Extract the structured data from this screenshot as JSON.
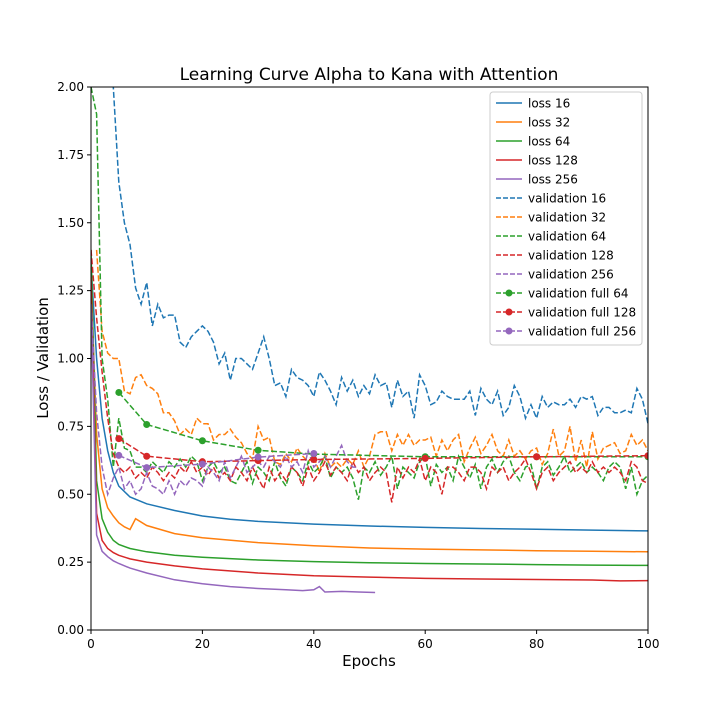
{
  "chart_data": {
    "type": "line",
    "title": "Learning Curve Alpha to Kana with Attention",
    "xlabel": "Epochs",
    "ylabel": "Loss / Validation",
    "xlim": [
      0,
      100
    ],
    "ylim": [
      0,
      2.0
    ],
    "xticks": [
      "0",
      "20",
      "40",
      "60",
      "80",
      "100"
    ],
    "yticks": [
      "0.00",
      "0.25",
      "0.50",
      "0.75",
      "1.00",
      "1.25",
      "1.50",
      "1.75",
      "2.00"
    ],
    "grid": false,
    "legend_position": "top-right",
    "series": [
      {
        "name": "loss 16",
        "color": "#1f77b4",
        "style": "solid",
        "x": [
          0,
          1,
          2,
          3,
          4,
          5,
          7,
          10,
          15,
          20,
          25,
          30,
          40,
          50,
          60,
          70,
          80,
          90,
          100
        ],
        "y": [
          1.35,
          1.0,
          0.78,
          0.66,
          0.58,
          0.53,
          0.49,
          0.465,
          0.44,
          0.42,
          0.408,
          0.4,
          0.39,
          0.383,
          0.378,
          0.374,
          0.371,
          0.368,
          0.365
        ]
      },
      {
        "name": "loss 32",
        "color": "#ff7f0e",
        "style": "solid",
        "x": [
          0,
          1,
          2,
          3,
          4,
          5,
          6,
          7,
          8,
          10,
          15,
          20,
          30,
          40,
          50,
          60,
          70,
          80,
          90,
          100
        ],
        "y": [
          1.3,
          0.72,
          0.52,
          0.45,
          0.42,
          0.395,
          0.38,
          0.37,
          0.41,
          0.385,
          0.355,
          0.34,
          0.322,
          0.31,
          0.302,
          0.298,
          0.295,
          0.292,
          0.29,
          0.288
        ]
      },
      {
        "name": "loss 64",
        "color": "#2ca02c",
        "style": "solid",
        "x": [
          0,
          1,
          2,
          3,
          4,
          5,
          7,
          10,
          15,
          20,
          30,
          40,
          50,
          60,
          70,
          80,
          90,
          100
        ],
        "y": [
          1.4,
          0.55,
          0.41,
          0.36,
          0.33,
          0.315,
          0.3,
          0.288,
          0.275,
          0.268,
          0.258,
          0.252,
          0.248,
          0.245,
          0.243,
          0.241,
          0.239,
          0.238
        ]
      },
      {
        "name": "loss 128",
        "color": "#d62728",
        "style": "solid",
        "x": [
          0,
          1,
          2,
          3,
          4,
          5,
          7,
          10,
          15,
          20,
          30,
          40,
          50,
          60,
          70,
          80,
          90,
          95,
          100
        ],
        "y": [
          1.3,
          0.43,
          0.33,
          0.3,
          0.285,
          0.275,
          0.262,
          0.25,
          0.236,
          0.225,
          0.21,
          0.2,
          0.195,
          0.19,
          0.188,
          0.186,
          0.184,
          0.181,
          0.182
        ]
      },
      {
        "name": "loss 256",
        "color": "#9467bd",
        "style": "solid",
        "x": [
          0,
          1,
          2,
          3,
          4,
          5,
          7,
          10,
          15,
          20,
          25,
          30,
          35,
          38,
          40,
          41,
          42,
          45,
          48,
          51
        ],
        "y": [
          1.2,
          0.35,
          0.29,
          0.27,
          0.255,
          0.245,
          0.228,
          0.21,
          0.185,
          0.17,
          0.16,
          0.153,
          0.148,
          0.145,
          0.148,
          0.16,
          0.14,
          0.142,
          0.14,
          0.138
        ]
      },
      {
        "name": "validation 16",
        "color": "#1f77b4",
        "style": "dashed",
        "x": [
          3,
          4,
          5,
          6,
          7,
          8,
          9,
          10,
          11,
          12,
          13,
          14,
          15,
          16,
          17,
          18,
          19,
          20,
          21,
          22,
          23,
          24,
          25,
          26,
          27,
          28,
          29,
          30,
          31,
          32,
          33,
          34,
          35,
          36,
          37,
          38,
          39,
          40,
          41,
          42,
          43,
          44,
          45,
          46,
          47,
          48,
          49,
          50,
          51,
          52,
          53,
          54,
          55,
          56,
          57,
          58,
          59,
          60,
          61,
          62,
          63,
          64,
          65,
          66,
          67,
          68,
          69,
          70,
          71,
          72,
          73,
          74,
          75,
          76,
          77,
          78,
          79,
          80,
          81,
          82,
          83,
          84,
          85,
          86,
          87,
          88,
          89,
          90,
          91,
          92,
          93,
          94,
          95,
          96,
          97,
          98,
          99,
          100
        ],
        "y": [
          2.2,
          2.0,
          1.65,
          1.5,
          1.42,
          1.26,
          1.2,
          1.28,
          1.12,
          1.2,
          1.15,
          1.16,
          1.16,
          1.06,
          1.04,
          1.08,
          1.1,
          1.12,
          1.1,
          1.06,
          0.98,
          1.02,
          0.92,
          1.0,
          1.0,
          0.98,
          0.96,
          1.02,
          1.08,
          1.0,
          0.9,
          0.91,
          0.86,
          0.96,
          0.93,
          0.92,
          0.9,
          0.86,
          0.95,
          0.92,
          0.88,
          0.83,
          0.93,
          0.88,
          0.92,
          0.86,
          0.9,
          0.87,
          0.94,
          0.9,
          0.91,
          0.82,
          0.92,
          0.86,
          0.88,
          0.78,
          0.94,
          0.9,
          0.83,
          0.84,
          0.88,
          0.86,
          0.85,
          0.85,
          0.85,
          0.88,
          0.79,
          0.89,
          0.85,
          0.83,
          0.88,
          0.79,
          0.82,
          0.9,
          0.86,
          0.78,
          0.83,
          0.78,
          0.86,
          0.82,
          0.84,
          0.83,
          0.83,
          0.85,
          0.82,
          0.86,
          0.85,
          0.86,
          0.79,
          0.82,
          0.82,
          0.8,
          0.8,
          0.81,
          0.8,
          0.89,
          0.85,
          0.76
        ]
      },
      {
        "name": "validation 32",
        "color": "#ff7f0e",
        "style": "dashed",
        "x": [
          1,
          2,
          3,
          4,
          5,
          6,
          7,
          8,
          9,
          10,
          11,
          12,
          13,
          14,
          15,
          16,
          17,
          18,
          19,
          20,
          21,
          22,
          23,
          24,
          25,
          26,
          27,
          28,
          29,
          30,
          31,
          32,
          33,
          34,
          35,
          36,
          37,
          38,
          39,
          40,
          41,
          42,
          43,
          44,
          45,
          46,
          47,
          48,
          49,
          50,
          51,
          52,
          53,
          54,
          55,
          56,
          57,
          58,
          59,
          60,
          61,
          62,
          63,
          64,
          65,
          66,
          67,
          68,
          69,
          70,
          71,
          72,
          73,
          74,
          75,
          76,
          77,
          78,
          79,
          80,
          81,
          82,
          83,
          84,
          85,
          86,
          87,
          88,
          89,
          90,
          91,
          92,
          93,
          94,
          95,
          96,
          97,
          98,
          99,
          100
        ],
        "y": [
          1.4,
          1.1,
          1.02,
          1.0,
          1.0,
          0.88,
          0.87,
          0.93,
          0.94,
          0.9,
          0.89,
          0.87,
          0.8,
          0.8,
          0.77,
          0.72,
          0.74,
          0.72,
          0.78,
          0.76,
          0.76,
          0.7,
          0.72,
          0.72,
          0.74,
          0.71,
          0.69,
          0.65,
          0.63,
          0.75,
          0.7,
          0.71,
          0.62,
          0.61,
          0.65,
          0.62,
          0.67,
          0.64,
          0.62,
          0.64,
          0.58,
          0.65,
          0.6,
          0.62,
          0.6,
          0.63,
          0.61,
          0.66,
          0.6,
          0.64,
          0.72,
          0.73,
          0.73,
          0.66,
          0.72,
          0.68,
          0.72,
          0.68,
          0.7,
          0.7,
          0.71,
          0.64,
          0.7,
          0.66,
          0.7,
          0.72,
          0.62,
          0.67,
          0.71,
          0.65,
          0.68,
          0.72,
          0.66,
          0.64,
          0.7,
          0.64,
          0.66,
          0.63,
          0.66,
          0.67,
          0.61,
          0.65,
          0.74,
          0.64,
          0.66,
          0.75,
          0.62,
          0.7,
          0.6,
          0.73,
          0.63,
          0.67,
          0.68,
          0.69,
          0.65,
          0.66,
          0.72,
          0.68,
          0.7,
          0.66
        ]
      },
      {
        "name": "validation 64",
        "color": "#2ca02c",
        "style": "dashed",
        "x": [
          0,
          1,
          2,
          3,
          4,
          5,
          6,
          7,
          8,
          9,
          10,
          11,
          12,
          13,
          14,
          15,
          16,
          17,
          18,
          19,
          20,
          21,
          22,
          23,
          24,
          25,
          26,
          27,
          28,
          29,
          30,
          31,
          32,
          33,
          34,
          35,
          36,
          37,
          38,
          39,
          40,
          41,
          42,
          43,
          44,
          45,
          46,
          47,
          48,
          49,
          50,
          51,
          52,
          53,
          54,
          55,
          56,
          57,
          58,
          59,
          60,
          61,
          62,
          63,
          64,
          65,
          66,
          67,
          68,
          69,
          70,
          71,
          72,
          73,
          74,
          75,
          76,
          77,
          78,
          79,
          80,
          81,
          82,
          83,
          84,
          85,
          86,
          87,
          88,
          89,
          90,
          91,
          92,
          93,
          94,
          95,
          96,
          97,
          98,
          99,
          100
        ],
        "y": [
          2.0,
          1.9,
          1.0,
          0.85,
          0.6,
          0.78,
          0.67,
          0.66,
          0.6,
          0.6,
          0.58,
          0.62,
          0.6,
          0.58,
          0.62,
          0.6,
          0.63,
          0.6,
          0.64,
          0.62,
          0.55,
          0.6,
          0.62,
          0.58,
          0.6,
          0.55,
          0.54,
          0.58,
          0.62,
          0.54,
          0.6,
          0.58,
          0.55,
          0.62,
          0.56,
          0.53,
          0.6,
          0.58,
          0.55,
          0.62,
          0.58,
          0.6,
          0.64,
          0.56,
          0.6,
          0.58,
          0.6,
          0.56,
          0.48,
          0.6,
          0.58,
          0.62,
          0.57,
          0.6,
          0.64,
          0.52,
          0.6,
          0.58,
          0.56,
          0.62,
          0.64,
          0.53,
          0.61,
          0.58,
          0.6,
          0.55,
          0.64,
          0.6,
          0.56,
          0.61,
          0.52,
          0.6,
          0.63,
          0.58,
          0.62,
          0.64,
          0.58,
          0.55,
          0.6,
          0.61,
          0.52,
          0.6,
          0.62,
          0.57,
          0.6,
          0.64,
          0.58,
          0.6,
          0.62,
          0.58,
          0.6,
          0.58,
          0.55,
          0.6,
          0.62,
          0.6,
          0.52,
          0.6,
          0.5,
          0.55,
          0.57
        ]
      },
      {
        "name": "validation 128",
        "color": "#d62728",
        "style": "dashed",
        "x": [
          0,
          1,
          2,
          3,
          4,
          5,
          6,
          7,
          8,
          9,
          10,
          11,
          12,
          13,
          14,
          15,
          16,
          17,
          18,
          19,
          20,
          21,
          22,
          23,
          24,
          25,
          26,
          27,
          28,
          29,
          30,
          31,
          32,
          33,
          34,
          35,
          36,
          37,
          38,
          39,
          40,
          41,
          42,
          43,
          44,
          45,
          46,
          47,
          48,
          49,
          50,
          51,
          52,
          53,
          54,
          55,
          56,
          57,
          58,
          59,
          60,
          61,
          62,
          63,
          64,
          65,
          66,
          67,
          68,
          69,
          70,
          71,
          72,
          73,
          74,
          75,
          76,
          77,
          78,
          79,
          80,
          81,
          82,
          83,
          84,
          85,
          86,
          87,
          88,
          89,
          90,
          91,
          92,
          93,
          94,
          95,
          96,
          97,
          98,
          99,
          100
        ],
        "y": [
          1.4,
          1.15,
          0.95,
          0.78,
          0.65,
          0.6,
          0.58,
          0.6,
          0.56,
          0.58,
          0.56,
          0.6,
          0.58,
          0.55,
          0.58,
          0.56,
          0.6,
          0.58,
          0.62,
          0.58,
          0.6,
          0.57,
          0.6,
          0.56,
          0.58,
          0.55,
          0.6,
          0.58,
          0.55,
          0.6,
          0.56,
          0.52,
          0.6,
          0.55,
          0.58,
          0.55,
          0.6,
          0.58,
          0.53,
          0.6,
          0.55,
          0.58,
          0.62,
          0.57,
          0.6,
          0.58,
          0.55,
          0.62,
          0.58,
          0.6,
          0.55,
          0.58,
          0.6,
          0.58,
          0.47,
          0.6,
          0.56,
          0.6,
          0.58,
          0.63,
          0.55,
          0.6,
          0.58,
          0.5,
          0.6,
          0.6,
          0.58,
          0.55,
          0.6,
          0.6,
          0.58,
          0.52,
          0.6,
          0.58,
          0.6,
          0.55,
          0.58,
          0.6,
          0.63,
          0.58,
          0.52,
          0.58,
          0.6,
          0.55,
          0.58,
          0.6,
          0.62,
          0.58,
          0.6,
          0.58,
          0.62,
          0.58,
          0.6,
          0.58,
          0.6,
          0.58,
          0.55,
          0.62,
          0.6,
          0.55,
          0.54
        ]
      },
      {
        "name": "validation 256",
        "color": "#9467bd",
        "style": "dashed",
        "x": [
          0,
          1,
          2,
          3,
          4,
          5,
          6,
          7,
          8,
          9,
          10,
          11,
          12,
          13,
          14,
          15,
          16,
          17,
          18,
          19,
          20,
          21,
          22,
          23,
          24,
          25,
          26,
          27,
          28,
          29,
          30,
          31,
          32,
          33,
          34,
          35,
          36,
          37,
          38,
          39,
          40,
          41,
          42,
          43,
          44,
          45,
          46,
          47,
          48
        ],
        "y": [
          1.2,
          0.8,
          0.6,
          0.5,
          0.56,
          0.6,
          0.52,
          0.55,
          0.5,
          0.52,
          0.58,
          0.53,
          0.52,
          0.5,
          0.55,
          0.5,
          0.55,
          0.53,
          0.56,
          0.55,
          0.53,
          0.6,
          0.58,
          0.55,
          0.62,
          0.56,
          0.6,
          0.64,
          0.58,
          0.6,
          0.62,
          0.6,
          0.64,
          0.62,
          0.6,
          0.64,
          0.6,
          0.62,
          0.58,
          0.66,
          0.6,
          0.62,
          0.64,
          0.6,
          0.64,
          0.68,
          0.62,
          0.6,
          0.6
        ]
      },
      {
        "name": "validation full 64",
        "color": "#2ca02c",
        "style": "dashed",
        "marker": "circle",
        "x": [
          5,
          10,
          20,
          30,
          40,
          60,
          80,
          100
        ],
        "y": [
          0.875,
          0.757,
          0.697,
          0.662,
          0.648,
          0.638,
          0.638,
          0.638
        ]
      },
      {
        "name": "validation full 128",
        "color": "#d62728",
        "style": "dashed",
        "marker": "circle",
        "x": [
          5,
          10,
          20,
          30,
          40,
          60,
          80,
          100
        ],
        "y": [
          0.705,
          0.64,
          0.62,
          0.624,
          0.628,
          0.632,
          0.638,
          0.642
        ]
      },
      {
        "name": "validation full 256",
        "color": "#9467bd",
        "style": "dashed",
        "marker": "circle",
        "x": [
          5,
          10,
          20,
          30,
          40
        ],
        "y": [
          0.643,
          0.598,
          0.611,
          0.637,
          0.65
        ]
      }
    ]
  }
}
